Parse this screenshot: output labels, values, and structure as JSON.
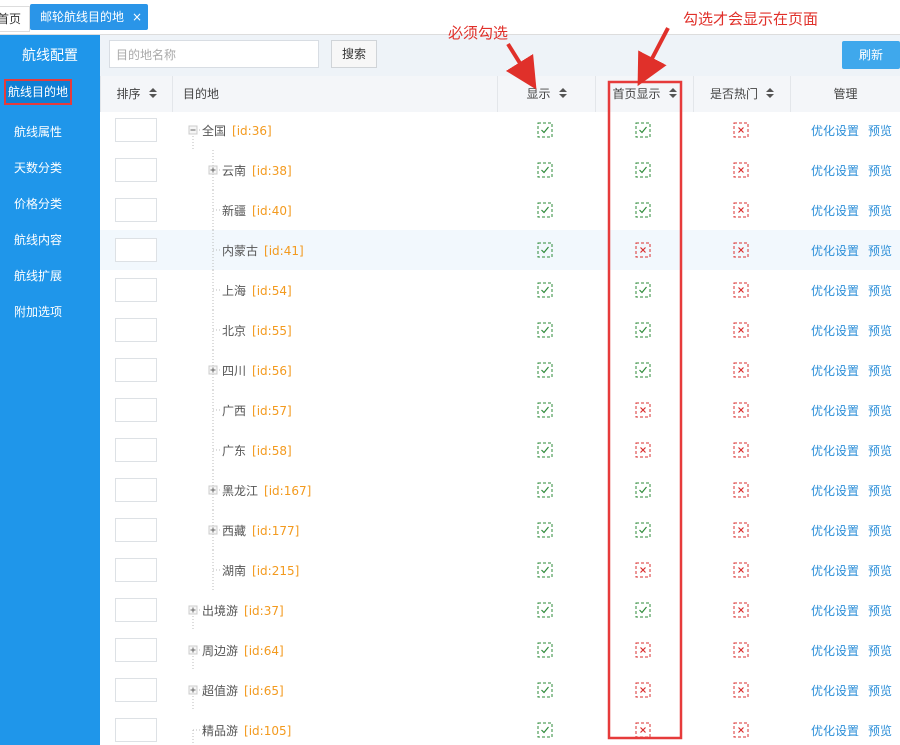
{
  "tabs": {
    "home": "首页",
    "active": "邮轮航线目的地",
    "close": "×"
  },
  "sidebar": {
    "title": "航线配置",
    "items": [
      "航线目的地",
      "航线属性",
      "天数分类",
      "价格分类",
      "航线内容",
      "航线扩展",
      "附加选项"
    ],
    "active_index": 0
  },
  "toolbar": {
    "search_placeholder": "目的地名称",
    "search_button": "搜索",
    "refresh_button": "刷新"
  },
  "annotations": {
    "show_note": "必须勾选",
    "home_note": "勾选才会显示在页面"
  },
  "table": {
    "columns": [
      "排序",
      "目的地",
      "显示",
      "首页显示",
      "是否热门",
      "管理"
    ],
    "actions": [
      "优化设置",
      "预览"
    ],
    "rows": [
      {
        "name": "全国",
        "id": "[id:36]",
        "level": 0,
        "expander": "minus",
        "show": true,
        "home": true,
        "hot": false
      },
      {
        "name": "云南",
        "id": "[id:38]",
        "level": 1,
        "expander": "plus",
        "show": true,
        "home": true,
        "hot": false
      },
      {
        "name": "新疆",
        "id": "[id:40]",
        "level": 1,
        "expander": "none",
        "show": true,
        "home": true,
        "hot": false
      },
      {
        "name": "内蒙古",
        "id": "[id:41]",
        "level": 1,
        "expander": "none",
        "show": true,
        "home": false,
        "hot": false,
        "highlighted": true
      },
      {
        "name": "上海",
        "id": "[id:54]",
        "level": 1,
        "expander": "none",
        "show": true,
        "home": true,
        "hot": false
      },
      {
        "name": "北京",
        "id": "[id:55]",
        "level": 1,
        "expander": "none",
        "show": true,
        "home": true,
        "hot": false
      },
      {
        "name": "四川",
        "id": "[id:56]",
        "level": 1,
        "expander": "plus",
        "show": true,
        "home": true,
        "hot": false
      },
      {
        "name": "广西",
        "id": "[id:57]",
        "level": 1,
        "expander": "none",
        "show": true,
        "home": false,
        "hot": false
      },
      {
        "name": "广东",
        "id": "[id:58]",
        "level": 1,
        "expander": "none",
        "show": true,
        "home": false,
        "hot": false
      },
      {
        "name": "黑龙江",
        "id": "[id:167]",
        "level": 1,
        "expander": "plus",
        "show": true,
        "home": true,
        "hot": false
      },
      {
        "name": "西藏",
        "id": "[id:177]",
        "level": 1,
        "expander": "plus",
        "show": true,
        "home": true,
        "hot": false
      },
      {
        "name": "湖南",
        "id": "[id:215]",
        "level": 1,
        "expander": "none",
        "show": true,
        "home": false,
        "hot": false
      },
      {
        "name": "出境游",
        "id": "[id:37]",
        "level": 0,
        "expander": "plus",
        "show": true,
        "home": true,
        "hot": false
      },
      {
        "name": "周边游",
        "id": "[id:64]",
        "level": 0,
        "expander": "plus",
        "show": true,
        "home": false,
        "hot": false
      },
      {
        "name": "超值游",
        "id": "[id:65]",
        "level": 0,
        "expander": "plus",
        "show": true,
        "home": false,
        "hot": false
      },
      {
        "name": "精品游",
        "id": "[id:105]",
        "level": 0,
        "expander": "none",
        "show": true,
        "home": false,
        "hot": false
      }
    ]
  }
}
